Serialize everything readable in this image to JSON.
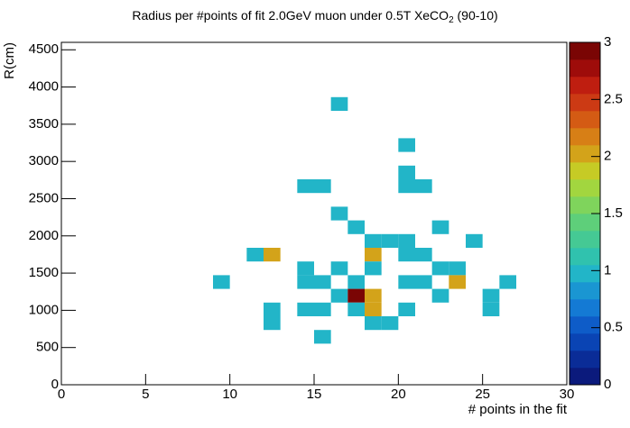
{
  "chart_data": {
    "type": "heatmap",
    "title": "Radius per #points of fit 2.0GeV muon under 0.5T XeCO2 (90-10)",
    "x_label": "# points in the fit",
    "y_label": "R(cm)",
    "xlim": [
      0,
      30
    ],
    "ylim": [
      0,
      4600
    ],
    "zlim": [
      0,
      3
    ],
    "xticks": [
      0,
      5,
      10,
      15,
      20,
      25,
      30
    ],
    "yticks": [
      0,
      500,
      1000,
      1500,
      2000,
      2500,
      3000,
      3500,
      4000,
      4500
    ],
    "zticks": [
      0,
      0.5,
      1,
      1.5,
      2,
      2.5,
      3
    ],
    "xbins": [
      0,
      1,
      2,
      3,
      4,
      5,
      6,
      7,
      8,
      9,
      10,
      11,
      12,
      13,
      14,
      15,
      16,
      17,
      18,
      19,
      20,
      21,
      22,
      23,
      24,
      25,
      26,
      27,
      28,
      29,
      30
    ],
    "ybins": [
      0,
      184,
      368,
      552,
      736,
      920,
      1104,
      1288,
      1472,
      1656,
      1840,
      2024,
      2208,
      2392,
      2576,
      2760,
      2944,
      3128,
      3312,
      3496,
      3680,
      3864,
      4048,
      4232,
      4416,
      4600
    ],
    "palette": [
      "#0b1a7c",
      "#0a2c97",
      "#0a44b4",
      "#0e5cc8",
      "#147ad4",
      "#1a96d2",
      "#22b5c8",
      "#30c2ae",
      "#45c994",
      "#5ecf7a",
      "#7fd45c",
      "#a2d63f",
      "#c6cb25",
      "#d3a31a",
      "#d77f16",
      "#d45b14",
      "#cc3a14",
      "#bf1e10",
      "#9e0c0a",
      "#7a0504"
    ],
    "cells": {
      "x": [
        16,
        20,
        20,
        14,
        15,
        20,
        21,
        16,
        17,
        22,
        18,
        19,
        20,
        24,
        11,
        12,
        18,
        20,
        21,
        14,
        16,
        18,
        22,
        23,
        9,
        14,
        15,
        17,
        20,
        21,
        23,
        26,
        16,
        17,
        18,
        22,
        25,
        12,
        14,
        15,
        17,
        18,
        20,
        25,
        12,
        18,
        19,
        15
      ],
      "y": [
        3680,
        3128,
        2760,
        2576,
        2576,
        2576,
        2576,
        2208,
        2024,
        2024,
        1840,
        1840,
        1840,
        1840,
        1656,
        1656,
        1656,
        1656,
        1656,
        1472,
        1472,
        1472,
        1472,
        1472,
        1288,
        1288,
        1288,
        1288,
        1288,
        1288,
        1288,
        1288,
        1104,
        1104,
        1104,
        1104,
        1104,
        920,
        920,
        920,
        920,
        920,
        920,
        920,
        736,
        736,
        736,
        552
      ],
      "values": [
        1,
        1,
        1,
        1,
        1,
        1,
        1,
        1,
        1,
        1,
        1,
        1,
        1,
        1,
        1,
        2,
        2,
        1,
        1,
        1,
        1,
        1,
        1,
        1,
        1,
        1,
        1,
        1,
        1,
        1,
        2,
        1,
        1,
        3,
        2,
        1,
        1,
        1,
        1,
        1,
        1,
        2,
        1,
        1,
        1,
        1,
        1,
        1
      ]
    }
  }
}
